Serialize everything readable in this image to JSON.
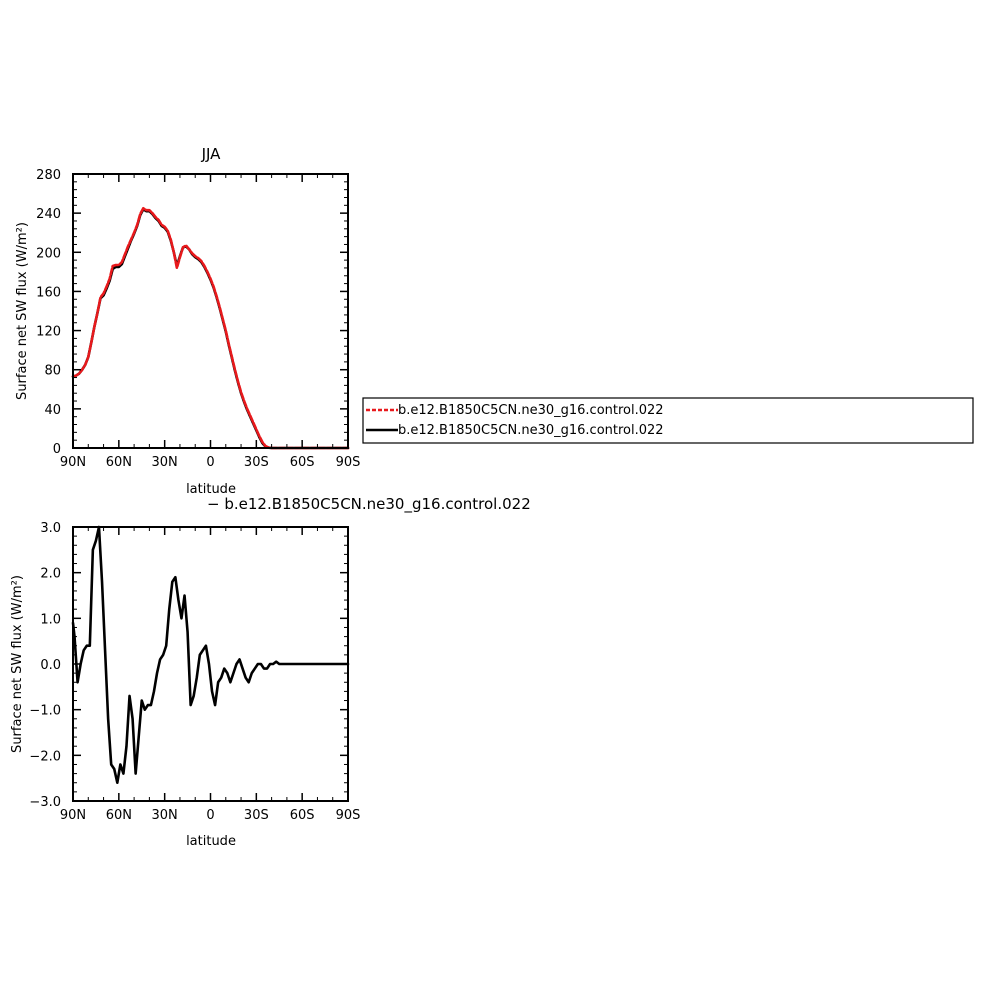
{
  "chart_data": [
    {
      "type": "line",
      "title": "JJA",
      "xlabel": "latitude",
      "ylabel": "Surface net SW flux (W/m²)",
      "xlim": [
        90,
        -90
      ],
      "ylim": [
        0,
        280
      ],
      "x_ticks": [
        90,
        60,
        30,
        0,
        -30,
        -60,
        -90
      ],
      "x_tick_labels": [
        "90N",
        "60N",
        "30N",
        "0",
        "30S",
        "60S",
        "90S"
      ],
      "y_ticks": [
        0,
        40,
        80,
        120,
        160,
        200,
        240,
        280
      ],
      "y_tick_labels": [
        "0",
        "40",
        "80",
        "120",
        "160",
        "200",
        "240",
        "280"
      ],
      "legend_position": "right",
      "x": [
        90,
        88,
        86,
        84,
        82,
        80,
        78,
        76,
        74,
        72,
        70,
        68,
        66,
        64,
        62,
        60,
        58,
        56,
        54,
        52,
        50,
        48,
        46,
        44,
        42,
        40,
        38,
        36,
        34,
        32,
        30,
        28,
        26,
        24,
        22,
        20,
        18,
        16,
        14,
        12,
        10,
        8,
        6,
        4,
        2,
        0,
        -2,
        -4,
        -6,
        -8,
        -10,
        -12,
        -14,
        -16,
        -18,
        -20,
        -22,
        -24,
        -26,
        -28,
        -30,
        -32,
        -34,
        -36,
        -38,
        -40,
        -42,
        -44,
        -46,
        -48,
        -50,
        -52,
        -54,
        -56,
        -58,
        -60,
        -62,
        -64,
        -66,
        -68,
        -70,
        -72,
        -74,
        -76,
        -78,
        -80,
        -82,
        -84,
        -86,
        -88,
        -90
      ],
      "series": [
        {
          "name": "b.e12.B1850C5CN.ne30_g16.control.022",
          "color": "#e8191c",
          "dashed": true,
          "values": [
            73,
            74,
            76,
            80,
            85,
            93,
            108,
            124,
            138,
            154,
            158,
            165,
            173,
            186,
            187,
            187,
            190,
            198,
            206,
            213,
            220,
            228,
            239,
            245,
            243,
            243,
            240,
            236,
            233,
            228,
            226,
            222,
            213,
            200,
            184,
            195,
            205,
            207,
            203,
            199,
            196,
            194,
            191,
            186,
            180,
            173,
            165,
            155,
            144,
            132,
            120,
            106,
            93,
            80,
            68,
            57,
            48,
            40,
            33,
            26,
            19,
            12,
            6,
            2,
            0.5,
            0,
            0,
            0,
            0,
            0,
            0,
            0,
            0,
            0,
            0,
            0,
            0,
            0,
            0,
            0,
            0,
            0,
            0,
            0,
            0,
            0,
            0,
            0,
            0,
            0,
            0
          ]
        },
        {
          "name": "b.e12.B1850C5CN.ne30_g16.control.022",
          "color": "#000000",
          "dashed": false,
          "values": [
            73,
            74,
            76,
            80,
            85,
            93,
            108,
            124,
            138,
            153,
            156,
            163,
            171,
            183,
            185,
            185,
            188,
            196,
            204,
            212,
            219,
            227,
            238,
            244,
            242,
            242,
            239,
            235,
            232,
            227,
            225,
            221,
            212,
            200,
            186,
            196,
            205,
            206,
            203,
            198,
            195,
            193,
            190,
            185,
            179,
            172,
            164,
            154,
            143,
            131,
            119,
            105,
            92,
            79,
            67,
            56,
            47,
            39,
            32,
            25,
            18,
            11,
            5,
            1.5,
            0.3,
            0,
            0,
            0,
            0,
            0,
            0,
            0,
            0,
            0,
            0,
            0,
            0,
            0,
            0,
            0,
            0,
            0,
            0,
            0,
            0,
            0,
            0,
            0,
            0,
            0,
            0
          ]
        }
      ]
    },
    {
      "type": "line",
      "title": "− b.e12.B1850C5CN.ne30_g16.control.022",
      "xlabel": "latitude",
      "ylabel": "Surface net SW flux (W/m²)",
      "xlim": [
        90,
        -90
      ],
      "ylim": [
        -3.0,
        3.0
      ],
      "x_ticks": [
        90,
        60,
        30,
        0,
        -30,
        -60,
        -90
      ],
      "x_tick_labels": [
        "90N",
        "60N",
        "30N",
        "0",
        "30S",
        "60S",
        "90S"
      ],
      "y_ticks": [
        -3.0,
        -2.0,
        -1.0,
        0.0,
        1.0,
        2.0,
        3.0
      ],
      "y_tick_labels": [
        "−3.0",
        "−2.0",
        "−1.0",
        "0.0",
        "1.0",
        "2.0",
        "3.0"
      ],
      "x": [
        90,
        89,
        87,
        85,
        83,
        81,
        79,
        77,
        75,
        73,
        71,
        69,
        67,
        65,
        63,
        61,
        59,
        57,
        55,
        53,
        51,
        49,
        47,
        45,
        43,
        41,
        39,
        37,
        35,
        33,
        31,
        29,
        27,
        25,
        23,
        21,
        19,
        17,
        15,
        13,
        11,
        9,
        7,
        5,
        3,
        1,
        -1,
        -3,
        -5,
        -7,
        -9,
        -11,
        -13,
        -15,
        -17,
        -19,
        -21,
        -23,
        -25,
        -27,
        -29,
        -31,
        -33,
        -35,
        -37,
        -39,
        -41,
        -43,
        -45,
        -47,
        -49,
        -51,
        -53,
        -55,
        -57,
        -59,
        -61,
        -63,
        -65,
        -67,
        -69,
        -71,
        -73,
        -75,
        -77,
        -79,
        -81,
        -83,
        -85,
        -87,
        -89,
        -90
      ],
      "series": [
        {
          "name": "",
          "color": "#000000",
          "dashed": false,
          "values": [
            0.9,
            0.6,
            -0.4,
            0.0,
            0.3,
            0.4,
            0.4,
            2.5,
            2.7,
            3.0,
            1.8,
            0.3,
            -1.2,
            -2.2,
            -2.3,
            -2.6,
            -2.2,
            -2.4,
            -1.8,
            -0.7,
            -1.2,
            -2.4,
            -1.6,
            -0.8,
            -1.0,
            -0.9,
            -0.9,
            -0.6,
            -0.2,
            0.1,
            0.2,
            0.4,
            1.2,
            1.8,
            1.9,
            1.4,
            1.0,
            1.5,
            0.7,
            -0.9,
            -0.7,
            -0.3,
            0.2,
            0.3,
            0.4,
            0.0,
            -0.6,
            -0.9,
            -0.4,
            -0.3,
            -0.1,
            -0.2,
            -0.4,
            -0.2,
            0.0,
            0.1,
            -0.1,
            -0.3,
            -0.4,
            -0.2,
            -0.1,
            0.0,
            0.0,
            -0.1,
            -0.1,
            0.0,
            0.0,
            0.05,
            0.0,
            0.0,
            0.0,
            0.0,
            0.0,
            0.0,
            0.0,
            0.0,
            0.0,
            0.0,
            0.0,
            0.0,
            0.0,
            0.0,
            0.0,
            0.0,
            0.0,
            0.0,
            0.0,
            0.0,
            0.0,
            0.0,
            0.0,
            0.0
          ]
        }
      ]
    }
  ]
}
